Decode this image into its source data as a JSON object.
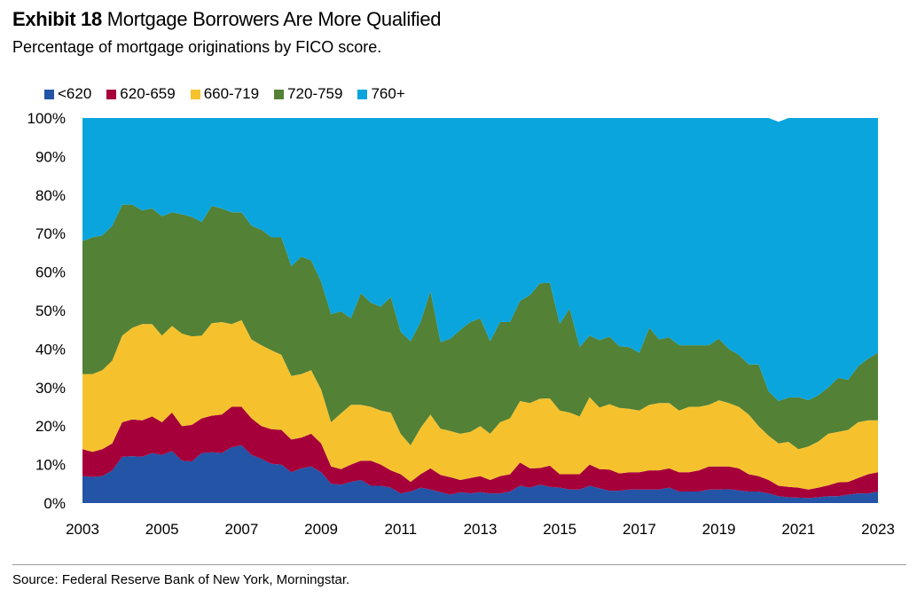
{
  "header": {
    "exhibit": "Exhibit 18",
    "title": "Mortgage Borrowers Are More Qualified",
    "subtitle": "Percentage of mortgage originations by FICO score."
  },
  "source": "Source: Federal Reserve Bank of New York, Morningstar.",
  "chart_data": {
    "type": "area",
    "stacked": true,
    "title": "Mortgage Borrowers Are More Qualified",
    "subtitle": "Percentage of mortgage originations by FICO score.",
    "xlabel": "",
    "ylabel": "",
    "xlim": [
      2003,
      2023
    ],
    "ylim": [
      0,
      100
    ],
    "x_ticks": [
      "2003",
      "2005",
      "2007",
      "2009",
      "2011",
      "2013",
      "2015",
      "2017",
      "2019",
      "2021",
      "2023"
    ],
    "y_ticks": [
      "0%",
      "10%",
      "20%",
      "30%",
      "40%",
      "50%",
      "60%",
      "70%",
      "80%",
      "90%",
      "100%"
    ],
    "legend_position": "top-left",
    "grid": false,
    "x": [
      2003.0,
      2003.25,
      2003.5,
      2003.75,
      2004.0,
      2004.25,
      2004.5,
      2004.75,
      2005.0,
      2005.25,
      2005.5,
      2005.75,
      2006.0,
      2006.25,
      2006.5,
      2006.75,
      2007.0,
      2007.25,
      2007.5,
      2007.75,
      2008.0,
      2008.25,
      2008.5,
      2008.75,
      2009.0,
      2009.25,
      2009.5,
      2009.75,
      2010.0,
      2010.25,
      2010.5,
      2010.75,
      2011.0,
      2011.25,
      2011.5,
      2011.75,
      2012.0,
      2012.25,
      2012.5,
      2012.75,
      2013.0,
      2013.25,
      2013.5,
      2013.75,
      2014.0,
      2014.25,
      2014.5,
      2014.75,
      2015.0,
      2015.25,
      2015.5,
      2015.75,
      2016.0,
      2016.25,
      2016.5,
      2016.75,
      2017.0,
      2017.25,
      2017.5,
      2017.75,
      2018.0,
      2018.25,
      2018.5,
      2018.75,
      2019.0,
      2019.25,
      2019.5,
      2019.75,
      2020.0,
      2020.25,
      2020.5,
      2020.75,
      2021.0,
      2021.25,
      2021.5,
      2021.75,
      2022.0,
      2022.25,
      2022.5,
      2022.75,
      2023.0
    ],
    "series": [
      {
        "name": "<620",
        "color": "#2454a6",
        "values": [
          7,
          6.8,
          7,
          8.5,
          12,
          12.2,
          12,
          13,
          12.5,
          13.5,
          11,
          10.8,
          13,
          13.2,
          13,
          14.5,
          15,
          12.5,
          11.5,
          10.2,
          10,
          8,
          9,
          9.5,
          8,
          5,
          4.8,
          5.5,
          6,
          4.5,
          4.5,
          4,
          2.5,
          3,
          4,
          3.5,
          2.8,
          2.2,
          2.8,
          2.5,
          2.8,
          2.5,
          2.5,
          3,
          4.5,
          4,
          4.8,
          4.2,
          4,
          3.5,
          3.5,
          4.5,
          3.8,
          3.2,
          3.2,
          3.5,
          3.5,
          3.5,
          3.5,
          4,
          3,
          3,
          3,
          3.5,
          3.5,
          3.6,
          3.3,
          3,
          3,
          2.5,
          1.8,
          1.5,
          1.4,
          1.3,
          1.5,
          1.8,
          1.8,
          2.2,
          2.5,
          2.5,
          3
        ]
      },
      {
        "name": "620-659",
        "color": "#a6003a",
        "values": [
          7,
          6.5,
          7,
          7,
          9,
          9.5,
          9.5,
          9.5,
          8.5,
          10,
          9,
          9.5,
          9,
          9.5,
          10,
          10.5,
          10,
          9.5,
          8.5,
          9,
          9,
          8.5,
          8,
          8.5,
          7.5,
          4.5,
          4,
          4.5,
          5,
          6.5,
          5.5,
          4.5,
          5,
          2.5,
          3.5,
          5.5,
          4.5,
          4.5,
          3.2,
          4,
          4.2,
          3.5,
          4.5,
          4.5,
          6,
          5,
          4.3,
          5.5,
          3.5,
          4,
          4,
          5.5,
          5,
          5.5,
          4.5,
          4.5,
          4.5,
          5,
          5,
          5,
          5,
          5,
          5.5,
          6,
          6,
          5.9,
          5.7,
          4.5,
          4,
          3.5,
          2.7,
          2.7,
          2.6,
          2.2,
          2.5,
          2.8,
          3.6,
          3.3,
          4,
          5,
          5
        ]
      },
      {
        "name": "660-719",
        "color": "#f5c22e",
        "values": [
          19.5,
          20.2,
          20.5,
          21.5,
          22.5,
          23.8,
          25,
          24,
          22.5,
          22.5,
          24,
          23,
          21.5,
          24,
          24,
          21.5,
          22.5,
          20.5,
          21,
          20.5,
          19.5,
          16.5,
          16.5,
          16.5,
          14,
          11.5,
          14.5,
          15.5,
          14.5,
          14,
          14,
          15,
          10.5,
          9.5,
          12,
          14,
          12,
          12,
          12,
          12,
          13,
          12,
          14,
          14.5,
          16,
          17,
          18,
          17.5,
          16.5,
          16,
          15,
          17.5,
          16,
          17,
          17,
          16.5,
          16,
          17,
          17.5,
          17,
          16,
          17,
          16.5,
          16,
          17.2,
          16.5,
          16,
          15.5,
          13,
          11.5,
          11,
          11.7,
          10,
          11.2,
          12,
          13.4,
          13.1,
          13.5,
          14.5,
          14,
          13.5
        ]
      },
      {
        "name": "720-759",
        "color": "#538135",
        "values": [
          34.5,
          35.5,
          35,
          35,
          34,
          32,
          29.5,
          30,
          31,
          29.5,
          31,
          31,
          29.5,
          30.5,
          29.5,
          29,
          28,
          29.5,
          30,
          29.3,
          30.5,
          28.5,
          30.5,
          28.5,
          28,
          28,
          26.5,
          22.5,
          29,
          27,
          27,
          30,
          26.5,
          27,
          27.5,
          32,
          22.5,
          24,
          27,
          28.5,
          28,
          24,
          26,
          25,
          26,
          28,
          30,
          30,
          22.5,
          27,
          18,
          16,
          17.5,
          17.5,
          16,
          16,
          15,
          20,
          16.5,
          17,
          17,
          16,
          16,
          15.5,
          16,
          14,
          13.5,
          13,
          16,
          11.5,
          11,
          11.5,
          13.5,
          12,
          12,
          12,
          14,
          13,
          14.5,
          16,
          17.5
        ]
      },
      {
        "name": "760+",
        "color": "#0ba5de",
        "values": [
          32,
          31,
          30.5,
          28,
          22.5,
          22.5,
          24,
          23.5,
          25.5,
          24.5,
          25,
          25.7,
          27,
          23.8,
          23.5,
          24.5,
          24.5,
          28,
          29,
          31,
          31,
          38.5,
          36,
          37,
          42.5,
          51,
          50.2,
          52,
          45.5,
          48,
          49,
          46.5,
          55.5,
          58,
          53,
          45,
          58.2,
          57.3,
          55,
          53,
          52,
          58,
          53,
          53,
          47.5,
          46,
          43,
          42.8,
          53.5,
          49.5,
          59.5,
          56.5,
          57.7,
          56.8,
          59.3,
          59.5,
          61,
          54.5,
          57.5,
          57,
          59,
          59,
          59,
          59,
          57.3,
          60,
          63.5,
          64,
          64,
          71,
          72.5,
          72.6,
          72.5,
          73.3,
          72,
          70,
          67.5,
          68,
          64.5,
          62.5,
          61.5
        ]
      }
    ]
  }
}
